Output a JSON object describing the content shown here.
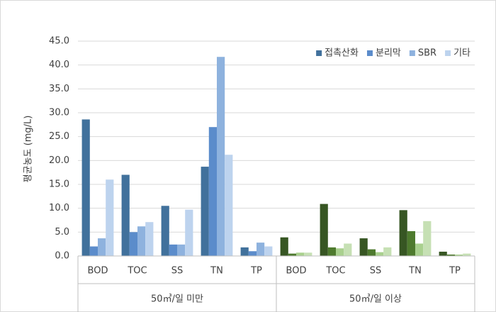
{
  "chart_data": {
    "type": "bar",
    "y_label": "평균농도 (mg/L)",
    "groups": [
      {
        "name": "50㎥/일 미만",
        "categories": [
          "BOD",
          "TOC",
          "SS",
          "TN",
          "TP"
        ]
      },
      {
        "name": "50㎥/일 이상",
        "categories": [
          "BOD",
          "TOC",
          "SS",
          "TN",
          "TP"
        ]
      }
    ],
    "series": [
      {
        "name": "접촉산화",
        "colors": [
          "#41719c",
          "#375623"
        ],
        "values": [
          28.6,
          17.0,
          10.5,
          18.7,
          1.8,
          3.9,
          10.9,
          3.7,
          9.6,
          0.9
        ]
      },
      {
        "name": "분리막",
        "colors": [
          "#5b8ccb",
          "#4e7a2e"
        ],
        "values": [
          2.0,
          5.0,
          2.4,
          27.0,
          1.0,
          0.5,
          1.8,
          1.4,
          5.2,
          0.3
        ]
      },
      {
        "name": "SBR",
        "colors": [
          "#8eb2de",
          "#a9d08e"
        ],
        "values": [
          3.7,
          6.2,
          2.4,
          41.7,
          2.8,
          0.7,
          1.6,
          0.8,
          2.6,
          0.3
        ]
      },
      {
        "name": "기타",
        "colors": [
          "#bdd3ee",
          "#c6e0b4"
        ],
        "values": [
          16.0,
          7.1,
          9.7,
          21.2,
          2.0,
          0.7,
          2.6,
          1.8,
          7.3,
          0.5
        ]
      }
    ],
    "ylim": [
      0,
      45
    ],
    "yticks": [
      {
        "value": 0,
        "label": "0.0"
      },
      {
        "value": 5,
        "label": "5.0"
      },
      {
        "value": 10,
        "label": "10.0"
      },
      {
        "value": 15,
        "label": "15.0"
      },
      {
        "value": 20,
        "label": "20.0"
      },
      {
        "value": 25,
        "label": "25.0"
      },
      {
        "value": 30,
        "label": "30.0"
      },
      {
        "value": 35,
        "label": "35.0"
      },
      {
        "value": 40,
        "label": "40.0"
      },
      {
        "value": 45,
        "label": "45.0"
      }
    ],
    "grid": true,
    "legend": "top-right"
  }
}
